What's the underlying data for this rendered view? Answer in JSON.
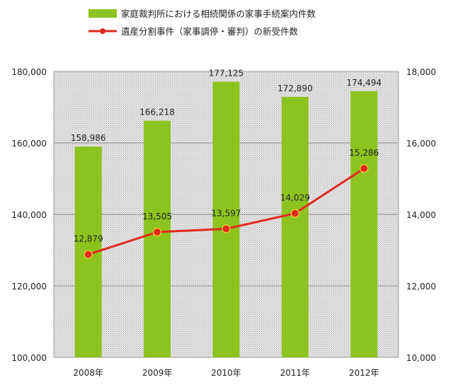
{
  "chart_data": {
    "type": "bar+line",
    "categories": [
      "2008年",
      "2009年",
      "2010年",
      "2011年",
      "2012年"
    ],
    "series": [
      {
        "name": "家庭裁判所における相続関係の家事手続案内件数",
        "type": "bar",
        "axis": "left",
        "color": "#8cc31e",
        "values": [
          158986,
          166218,
          177125,
          172890,
          174494
        ],
        "value_labels": [
          "158,986",
          "166,218",
          "177,125",
          "172,890",
          "174,494"
        ]
      },
      {
        "name": "遺産分割事件（家事調停・審判）の新受件数",
        "type": "line",
        "axis": "right",
        "color": "#e02a1e",
        "values": [
          12879,
          13505,
          13597,
          14029,
          15286
        ],
        "value_labels": [
          "12,879",
          "13,505",
          "13,597",
          "14,029",
          "15,286"
        ]
      }
    ],
    "y_left": {
      "min": 100000,
      "max": 180000,
      "ticks": [
        100000,
        120000,
        140000,
        160000,
        180000
      ],
      "tick_labels": [
        "100,000",
        "120,000",
        "140,000",
        "160,000",
        "180,000"
      ]
    },
    "y_right": {
      "min": 10000,
      "max": 18000,
      "ticks": [
        10000,
        12000,
        14000,
        16000,
        18000
      ],
      "tick_labels": [
        "10,000",
        "12,000",
        "14,000",
        "16,000",
        "18,000"
      ]
    },
    "grid": true,
    "legend_position": "top",
    "plot_background": "#d6d6d6"
  }
}
